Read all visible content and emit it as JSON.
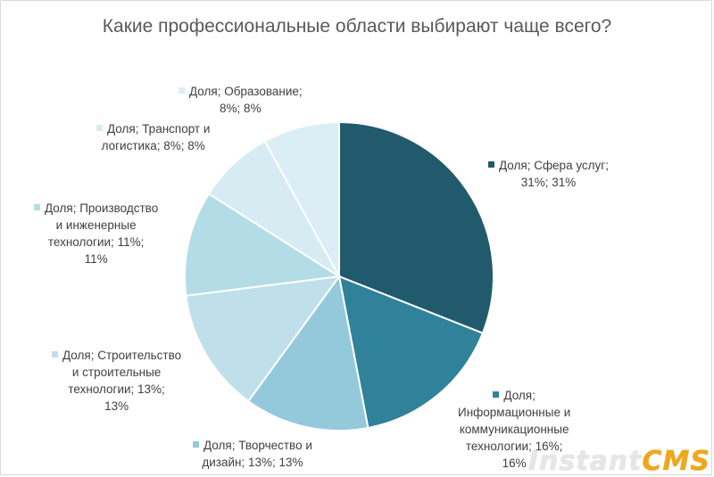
{
  "chart_data": {
    "type": "pie",
    "title": "Какие профессиональные области выбирают чаще всего?",
    "slices": [
      {
        "label": "Сфера услуг",
        "value": 31,
        "color": "#215a6c",
        "text_lines": [
          "Доля; Сфера услуг;",
          "31%; 31%"
        ]
      },
      {
        "label": "Информационные и коммуникационные технологии",
        "value": 16,
        "color": "#2f829a",
        "text_lines": [
          "Доля;",
          "Информационные и",
          "коммуникационные",
          "технологии; 16%;",
          "16%"
        ]
      },
      {
        "label": "Творчество и дизайн",
        "value": 13,
        "color": "#93c9db",
        "text_lines": [
          "Доля; Творчество и",
          "дизайн; 13%; 13%"
        ]
      },
      {
        "label": "Строительство и строительные технологии",
        "value": 13,
        "color": "#bfe0ea",
        "text_lines": [
          "Доля; Строительство",
          "и строительные",
          "технологии; 13%;",
          "13%"
        ]
      },
      {
        "label": "Производство и инженерные технологии",
        "value": 11,
        "color": "#b3dce7",
        "text_lines": [
          "Доля; Производство",
          "и инженерные",
          "технологии; 11%;",
          "11%"
        ]
      },
      {
        "label": "Транспорт и логистика",
        "value": 8,
        "color": "#d6ebf2",
        "text_lines": [
          "Доля; Транспорт и",
          "логистика; 8%; 8%"
        ]
      },
      {
        "label": "Образование",
        "value": 8,
        "color": "#dceef5",
        "text_lines": [
          "Доля; Образование;",
          "8%; 8%"
        ]
      }
    ]
  },
  "watermark": {
    "part1": "Instant",
    "part2": "CMS"
  }
}
